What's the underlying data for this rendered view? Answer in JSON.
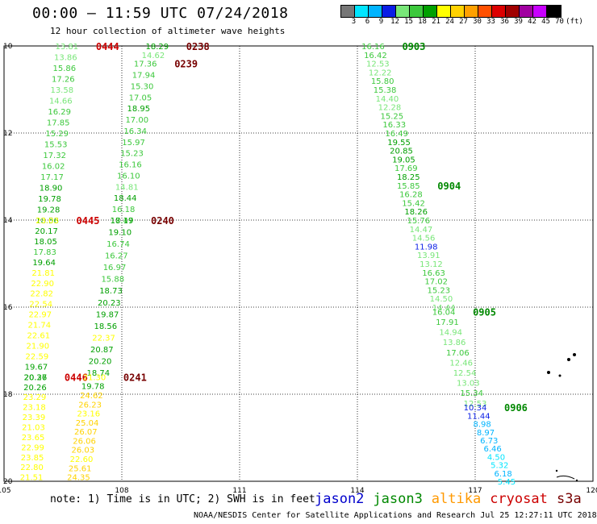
{
  "header": {
    "title": "00:00 — 11:59 UTC 07/24/2018",
    "subtitle": "12 hour collection of altimeter wave heights"
  },
  "colorbar": {
    "unit_label": "(ft)",
    "ticks": [
      "3",
      "6",
      "9",
      "12",
      "15",
      "18",
      "21",
      "24",
      "27",
      "30",
      "33",
      "36",
      "39",
      "42",
      "45",
      "70"
    ],
    "colors": [
      "#777777",
      "#00e5ff",
      "#00b4ff",
      "#0a1ee6",
      "#78e678",
      "#3cc83c",
      "#00a000",
      "#ffff00",
      "#ffd200",
      "#ffa000",
      "#ff5000",
      "#dc0000",
      "#a00000",
      "#a000a0",
      "#c800ff",
      "#000000"
    ]
  },
  "axes": {
    "lat_labels": [
      "10",
      "12",
      "14",
      "16",
      "18",
      "20"
    ],
    "lon_labels": [
      "105",
      "108",
      "111",
      "114",
      "117",
      "120"
    ]
  },
  "legend": {
    "note": "note: 1) Time is in UTC; 2) SWH is in feet",
    "satellites": [
      {
        "name": "jason2",
        "color": "#0000cc"
      },
      {
        "name": "jason3",
        "color": "#008800"
      },
      {
        "name": "altika",
        "color": "#ff9900"
      },
      {
        "name": "cryosat",
        "color": "#cc0000"
      },
      {
        "name": "s3a",
        "color": "#770000"
      }
    ]
  },
  "credit": "NOAA/NESDIS Center for Satellite Applications and Research    Jul 25 12:27:11 UTC 2018",
  "tracks": [
    {
      "id": "0444",
      "sat": "cryosat",
      "label_color": "#cc0000",
      "lat0": 10.0,
      "lat1": 14.0,
      "lon0": 106.6,
      "lon1": 106.1,
      "values": [
        "13.81",
        "13.86",
        "15.86",
        "17.26",
        "13.58",
        "14.66",
        "16.29",
        "17.85",
        "15.29",
        "15.53",
        "17.32",
        "16.02",
        "17.17",
        "18.90",
        "19.78",
        "19.28",
        "18.56"
      ]
    },
    {
      "id": "0445",
      "sat": "cryosat",
      "label_color": "#cc0000",
      "lat0": 14.0,
      "lat1": 17.6,
      "lon0": 106.1,
      "lon1": 105.8,
      "values": [
        "23.03",
        "20.17",
        "18.05",
        "17.83",
        "19.64",
        "21.81",
        "22.90",
        "22.82",
        "22.54",
        "22.97",
        "21.74",
        "22.61",
        "21.90",
        "22.59",
        "19.67",
        "20.27"
      ]
    },
    {
      "id": "0446",
      "sat": "cryosat",
      "label_color": "#cc0000",
      "lat0": 17.6,
      "lat1": 19.9,
      "lon0": 105.8,
      "lon1": 105.7,
      "values": [
        "20.36",
        "20.26",
        "23.29",
        "23.18",
        "23.39",
        "21.03",
        "23.65",
        "22.99",
        "23.85",
        "22.80",
        "21.51"
      ]
    },
    {
      "id": "0238",
      "sat": "s3a",
      "label_color": "#770000",
      "lat0": 10.0,
      "lat1": 10.2,
      "lon0": 108.9,
      "lon1": 108.8,
      "values": [
        "18.29",
        "14.62"
      ]
    },
    {
      "id": "0239",
      "sat": "s3a",
      "label_color": "#770000",
      "lat0": 10.4,
      "lat1": 14.0,
      "lon0": 108.6,
      "lon1": 108.0,
      "values": [
        "17.36",
        "17.94",
        "15.30",
        "17.05",
        "18.95",
        "17.00",
        "16.34",
        "15.97",
        "15.23",
        "16.16",
        "16.10",
        "14.81",
        "18.44",
        "16.18",
        "17.47"
      ]
    },
    {
      "id": "0240",
      "sat": "s3a",
      "label_color": "#770000",
      "lat0": 14.0,
      "lat1": 17.5,
      "lon0": 108.0,
      "lon1": 107.4,
      "values": [
        "18.19",
        "19.10",
        "16.74",
        "16.27",
        "16.97",
        "15.88",
        "18.73",
        "20.23",
        "19.87",
        "18.56",
        "22.37",
        "20.87",
        "20.20",
        "18.74"
      ]
    },
    {
      "id": "0241",
      "sat": "s3a",
      "label_color": "#770000",
      "lat0": 17.6,
      "lat1": 19.9,
      "lon0": 107.3,
      "lon1": 106.9,
      "values": [
        "21.30",
        "19.78",
        "24.62",
        "26.23",
        "23.16",
        "25.04",
        "26.07",
        "26.06",
        "26.03",
        "22.60",
        "25.61",
        "24.35"
      ]
    },
    {
      "id": "0903",
      "sat": "jason3",
      "label_color": "#008800",
      "lat0": 10.0,
      "lat1": 13.0,
      "lon0": 114.4,
      "lon1": 115.3,
      "values": [
        "16.16",
        "16.42",
        "12.53",
        "12.22",
        "15.80",
        "15.38",
        "14.40",
        "12.28",
        "15.25",
        "16.33",
        "16.49",
        "19.55",
        "20.85",
        "19.05",
        "17.69",
        "18.25"
      ]
    },
    {
      "id": "0904",
      "sat": "jason3",
      "label_color": "#008800",
      "lat0": 13.2,
      "lat1": 16.0,
      "lon0": 115.3,
      "lon1": 116.2,
      "values": [
        "15.85",
        "16.28",
        "15.42",
        "18.26",
        "15.76",
        "14.47",
        "14.56",
        "11.98",
        "13.91",
        "13.12",
        "16.63",
        "17.02",
        "15.23",
        "14.50",
        "14.44"
      ]
    },
    {
      "id": "0905",
      "sat": "jason3",
      "label_color": "#008800",
      "lat0": 16.1,
      "lat1": 18.2,
      "lon0": 116.2,
      "lon1": 117.0,
      "values": [
        "16.04",
        "17.91",
        "14.94",
        "13.86",
        "17.06",
        "12.46",
        "12.54",
        "13.03",
        "15.34",
        "12.53"
      ]
    },
    {
      "id": "0906",
      "sat": "jason3",
      "label_color": "#008800",
      "lat0": 18.3,
      "lat1": 20.0,
      "lon0": 117.0,
      "lon1": 117.8,
      "values": [
        "10.34",
        "11.44",
        "8.98",
        "8.97",
        "6.73",
        "6.46",
        "4.50",
        "5.32",
        "6.18",
        "5.45"
      ]
    }
  ]
}
